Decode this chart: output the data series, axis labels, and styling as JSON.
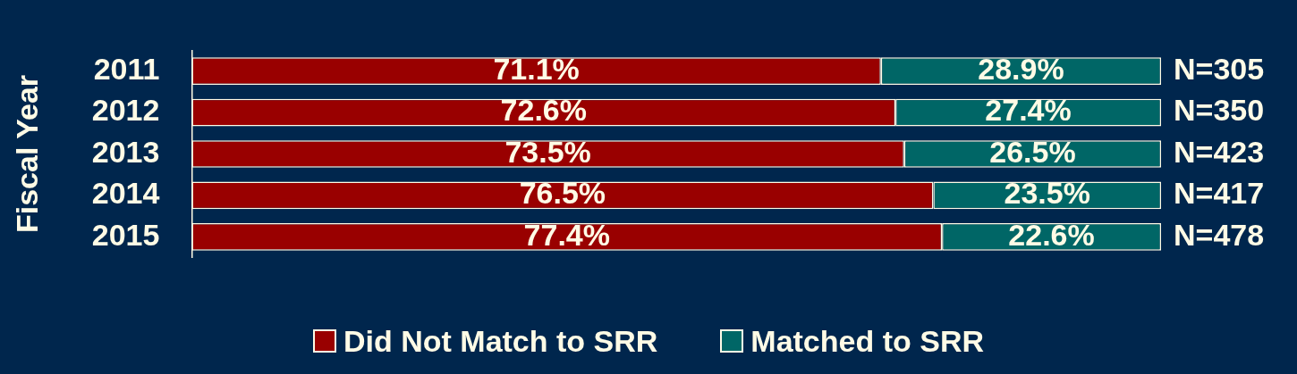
{
  "chart_data": {
    "type": "bar",
    "orientation": "horizontal",
    "stacked": true,
    "ylabel": "Fiscal Year",
    "categories": [
      "2011",
      "2012",
      "2013",
      "2014",
      "2015"
    ],
    "series": [
      {
        "name": "Did Not Match to SRR",
        "color": "#990000",
        "values": [
          71.1,
          72.6,
          73.5,
          76.5,
          77.4
        ],
        "value_labels": [
          "71.1%",
          "72.6%",
          "73.5%",
          "76.5%",
          "77.4%"
        ]
      },
      {
        "name": "Matched to SRR",
        "color": "#006666",
        "values": [
          28.9,
          27.4,
          26.5,
          23.5,
          22.6
        ],
        "value_labels": [
          "28.9%",
          "27.4%",
          "26.5%",
          "23.5%",
          "22.6%"
        ]
      }
    ],
    "annotations": [
      "N=305",
      "N=350",
      "N=423",
      "N=417",
      "N=478"
    ],
    "xlim": [
      0,
      100
    ],
    "tick_labels": "y",
    "legend": "bottom"
  }
}
